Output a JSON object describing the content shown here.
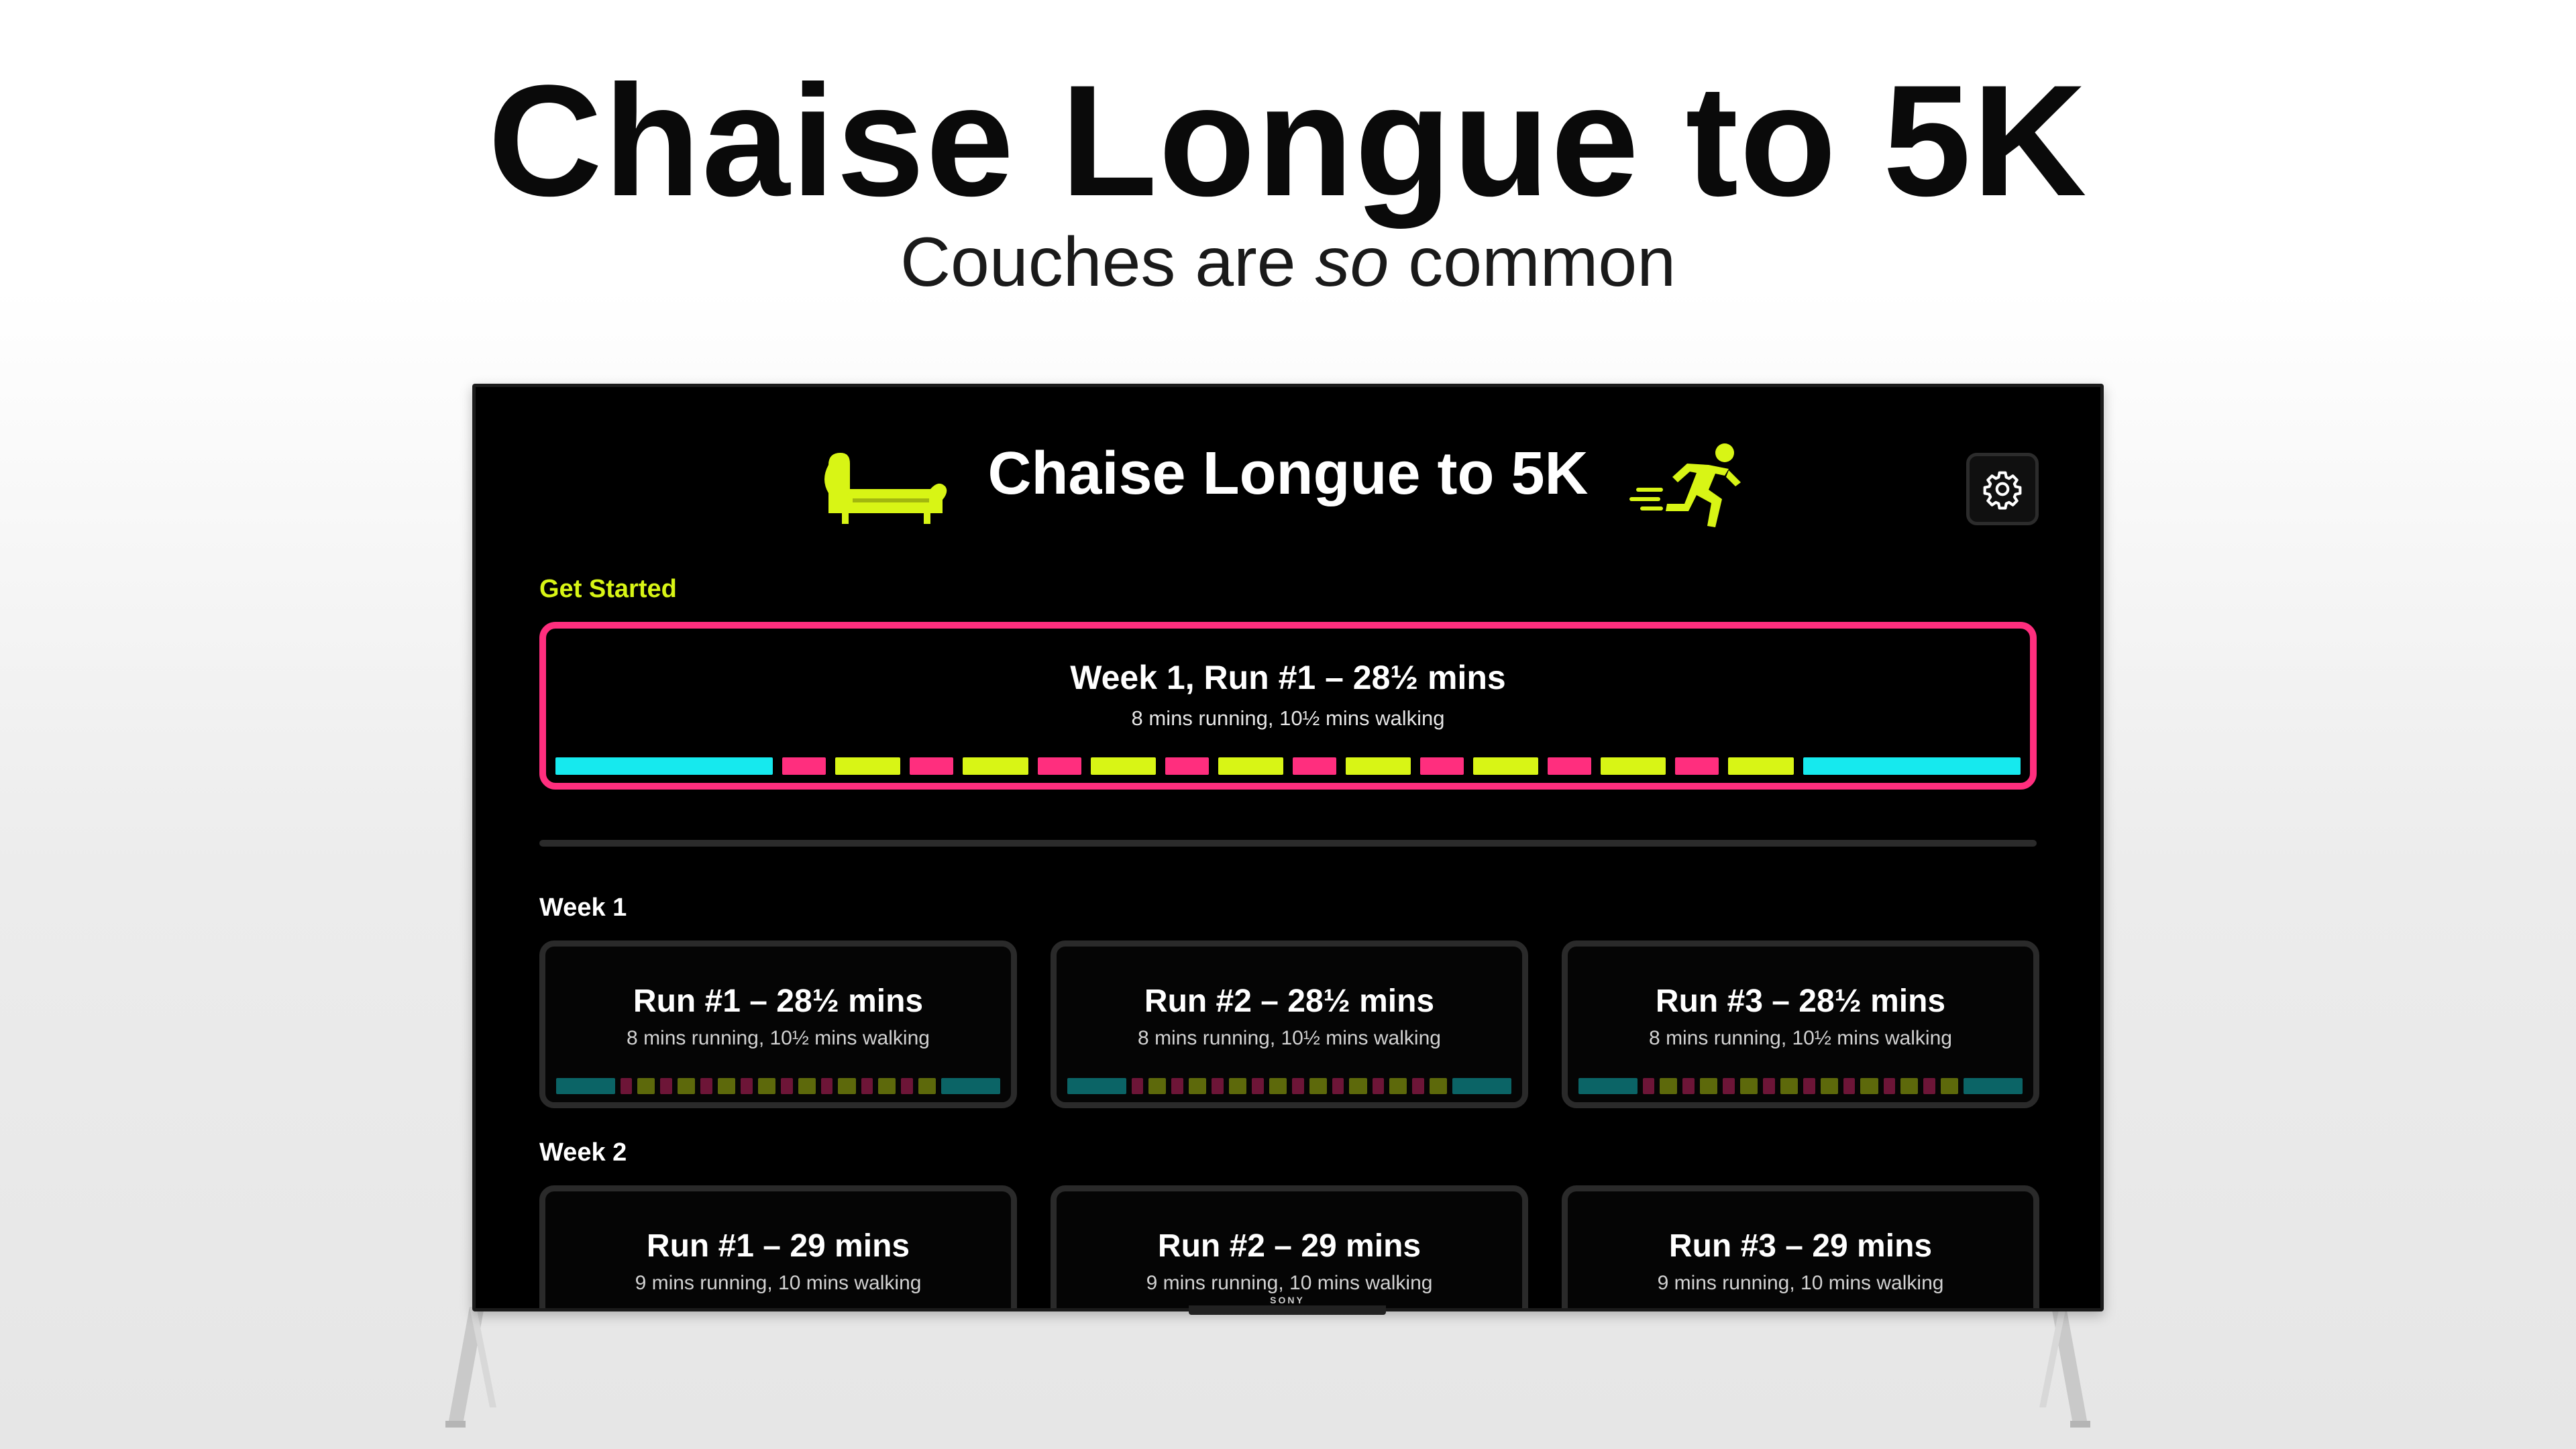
{
  "promo": {
    "title": "Chaise Longue to 5K",
    "subtitle_before": "Couches are ",
    "subtitle_emphasis": "so",
    "subtitle_after": " common"
  },
  "tv": {
    "brand": "SONY"
  },
  "app": {
    "title": "Chaise Longue to 5K",
    "icons": {
      "couch": "chaise-longue-icon",
      "runner": "runner-icon",
      "settings": "gear-icon"
    },
    "colors": {
      "accent": "#d8f515",
      "highlight": "#ff2e7e",
      "warmup": "#16e9ee",
      "run": "#ff2e7e",
      "walk": "#d8f515"
    },
    "get_started": {
      "label": "Get Started",
      "title": "Week 1, Run #1 – 28½ mins",
      "subtitle": "8 mins running, 10½ mins walking"
    },
    "weeks": [
      {
        "label": "Week 1",
        "runs": [
          {
            "title": "Run #1 – 28½ mins",
            "subtitle": "8 mins running, 10½ mins walking"
          },
          {
            "title": "Run #2 – 28½ mins",
            "subtitle": "8 mins running, 10½ mins walking"
          },
          {
            "title": "Run #3 – 28½ mins",
            "subtitle": "8 mins running, 10½ mins walking"
          }
        ]
      },
      {
        "label": "Week 2",
        "runs": [
          {
            "title": "Run #1 – 29 mins",
            "subtitle": "9 mins running, 10 mins walking"
          },
          {
            "title": "Run #2 – 29 mins",
            "subtitle": "9 mins running, 10 mins walking"
          },
          {
            "title": "Run #3 – 29 mins",
            "subtitle": "9 mins running, 10 mins walking"
          }
        ]
      }
    ]
  }
}
